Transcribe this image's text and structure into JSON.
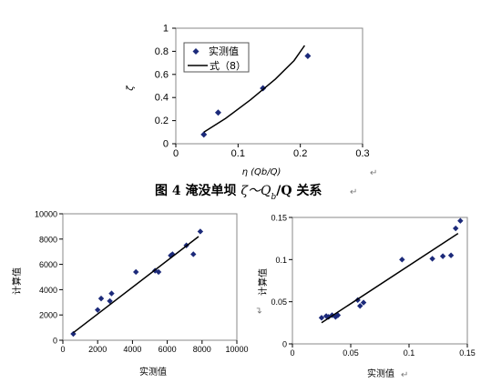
{
  "figure_caption": {
    "prefix": "图 4  淹没单坝 ",
    "symbol": "ζ～Q",
    "sub": "b",
    "suffix": "/Q 关系"
  },
  "chart_data": [
    {
      "type": "scatter",
      "id": "top",
      "xlabel": "η (Qb/Q)",
      "ylabel": "ζ",
      "xlim": [
        0,
        0.3
      ],
      "ylim": [
        0,
        1
      ],
      "xticks": [
        "0",
        "0.1",
        "0.2",
        "0.3"
      ],
      "yticks": [
        "0",
        "0.2",
        "0.4",
        "0.6",
        "0.8",
        "1"
      ],
      "legend_placement": "top-left",
      "series": [
        {
          "name": "实测值",
          "kind": "points",
          "color": "#1c2a7a",
          "x": [
            0.045,
            0.068,
            0.14,
            0.212
          ],
          "y": [
            0.08,
            0.27,
            0.48,
            0.76
          ]
        },
        {
          "name": "式（8）",
          "kind": "line",
          "color": "#000000",
          "x": [
            0.045,
            0.08,
            0.12,
            0.16,
            0.19,
            0.207
          ],
          "y": [
            0.1,
            0.22,
            0.38,
            0.56,
            0.72,
            0.85
          ]
        }
      ],
      "grid": false
    },
    {
      "type": "scatter",
      "id": "bottom-left",
      "xlabel": "实测值",
      "ylabel": "计算值",
      "xlim": [
        0,
        10000
      ],
      "ylim": [
        0,
        10000
      ],
      "xticks": [
        "0",
        "2000",
        "4000",
        "6000",
        "8000",
        "10000"
      ],
      "yticks": [
        "0",
        "2000",
        "4000",
        "6000",
        "8000",
        "10000"
      ],
      "series": [
        {
          "name": "",
          "kind": "points",
          "color": "#1c2a7a",
          "x": [
            600,
            2000,
            2200,
            2700,
            2800,
            4200,
            5300,
            5500,
            6200,
            6300,
            7100,
            7500,
            7900
          ],
          "y": [
            500,
            2400,
            3300,
            3100,
            3700,
            5400,
            5500,
            5400,
            6700,
            6800,
            7500,
            6800,
            8600
          ]
        },
        {
          "name": "",
          "kind": "line",
          "color": "#000000",
          "x": [
            600,
            7800
          ],
          "y": [
            600,
            8200
          ]
        }
      ],
      "grid": false
    },
    {
      "type": "scatter",
      "id": "bottom-right",
      "xlabel": "实测值",
      "ylabel": "计算值",
      "xlim": [
        0,
        0.15
      ],
      "ylim": [
        0,
        0.15
      ],
      "xticks": [
        "0",
        "0.05",
        "0.1",
        "0.15"
      ],
      "yticks": [
        "0",
        "0.05",
        "0.1",
        "0.15"
      ],
      "series": [
        {
          "name": "",
          "kind": "points",
          "color": "#1c2a7a",
          "x": [
            0.025,
            0.029,
            0.031,
            0.034,
            0.037,
            0.039,
            0.056,
            0.058,
            0.061,
            0.094,
            0.12,
            0.129,
            0.136,
            0.14,
            0.144
          ],
          "y": [
            0.031,
            0.033,
            0.032,
            0.034,
            0.032,
            0.034,
            0.052,
            0.045,
            0.049,
            0.1,
            0.101,
            0.104,
            0.105,
            0.137,
            0.146
          ]
        },
        {
          "name": "",
          "kind": "line",
          "color": "#000000",
          "x": [
            0.025,
            0.142
          ],
          "y": [
            0.025,
            0.131
          ]
        }
      ],
      "grid": false
    }
  ]
}
